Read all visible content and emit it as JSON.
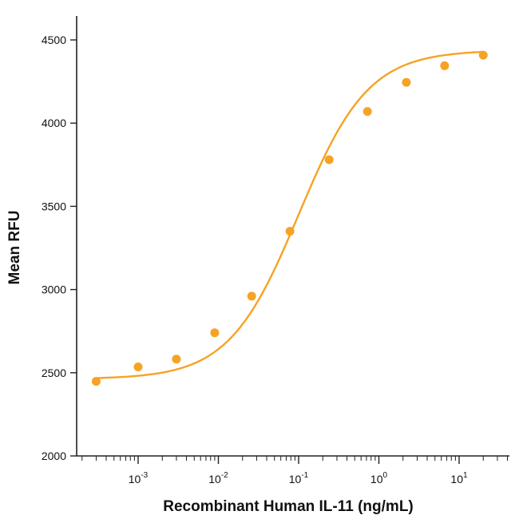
{
  "chart_data": {
    "type": "scatter",
    "title": "",
    "xlabel": "Recombinant Human IL-11 (ng/mL)",
    "ylabel": "Mean RFU",
    "x_scale": "log",
    "xlim": [
      0.0002,
      40
    ],
    "ylim": [
      2000,
      4650
    ],
    "x_ticks": [
      {
        "value": 0.001,
        "base": "10",
        "exp": "-3"
      },
      {
        "value": 0.01,
        "base": "10",
        "exp": "-2"
      },
      {
        "value": 0.1,
        "base": "10",
        "exp": "-1"
      },
      {
        "value": 1,
        "base": "10",
        "exp": "0"
      },
      {
        "value": 10,
        "base": "10",
        "exp": "1"
      }
    ],
    "y_ticks": [
      2000,
      2500,
      3000,
      3500,
      4000,
      4500
    ],
    "grid": false,
    "legend": "none",
    "colors": {
      "series": "#F6A324",
      "axis": "#222222"
    },
    "series": [
      {
        "x": [
          0.0003,
          0.001,
          0.003,
          0.009,
          0.026,
          0.078,
          0.24,
          0.72,
          2.2,
          6.6,
          20
        ],
        "y": [
          2448,
          2535,
          2582,
          2740,
          2960,
          3350,
          3780,
          4070,
          4245,
          4345,
          4408
        ]
      }
    ],
    "fit_curve": {
      "model": "4PL",
      "bottom": 2462,
      "top": 4438,
      "ec50": 0.1,
      "hill": 1.0
    }
  }
}
